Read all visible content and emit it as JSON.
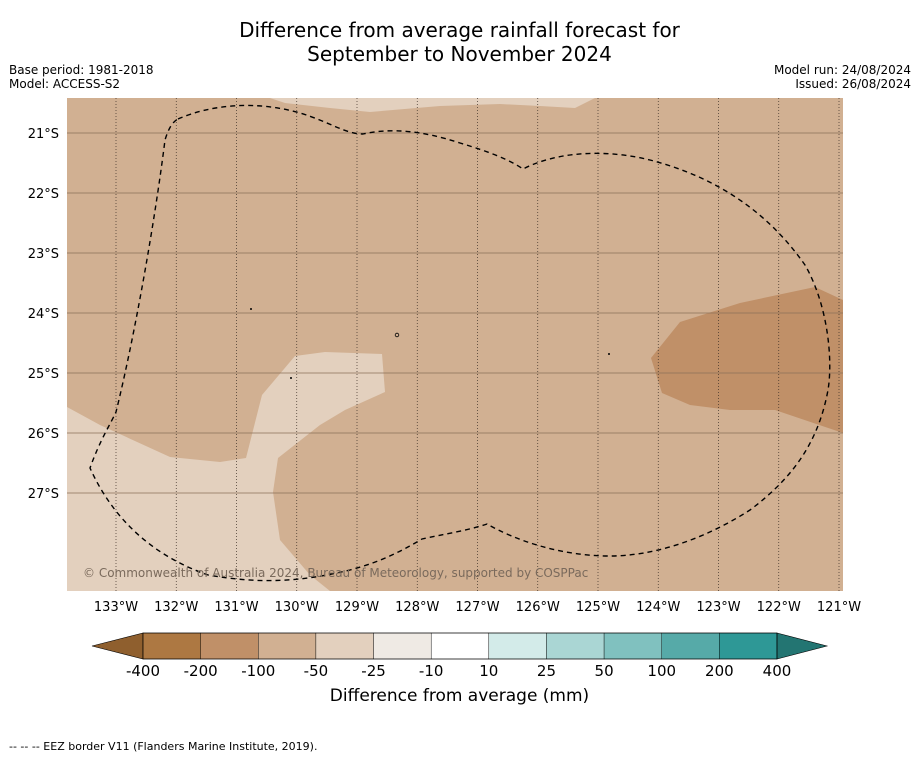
{
  "title_line1": "Difference from average rainfall forecast for",
  "title_line2": "September to November 2024",
  "base_period": "Base period: 1981-2018",
  "model": "Model: ACCESS-S2",
  "model_run": "Model run: 24/08/2024",
  "issued": "Issued: 26/08/2024",
  "copyright": "© Commonwealth of Australia 2024, Bureau of Meteorology, supported by COSPPac",
  "lon_labels": [
    "133°W",
    "132°W",
    "131°W",
    "130°W",
    "129°W",
    "128°W",
    "127°W",
    "126°W",
    "125°W",
    "124°W",
    "123°W",
    "122°W",
    "121°W"
  ],
  "lat_labels": [
    "21°S",
    "22°S",
    "23°S",
    "24°S",
    "25°S",
    "26°S",
    "27°S"
  ],
  "colorbar": {
    "title": "Difference from average (mm)",
    "ticks": [
      "-400",
      "-200",
      "-100",
      "-50",
      "-25",
      "-10",
      "10",
      "25",
      "50",
      "100",
      "200",
      "400"
    ],
    "colors": [
      "#ad7842",
      "#c09068",
      "#d1b092",
      "#e3d0be",
      "#efeae4",
      "#ffffff",
      "#d3ebe9",
      "#aad6d4",
      "#80c1bf",
      "#56aaa8",
      "#2e9896"
    ],
    "low_extend_color": "#8f5f2e",
    "high_extend_color": "#237572"
  },
  "footer": "--  --  -- EEZ border V11 (Flanders Marine Institute, 2019)."
}
